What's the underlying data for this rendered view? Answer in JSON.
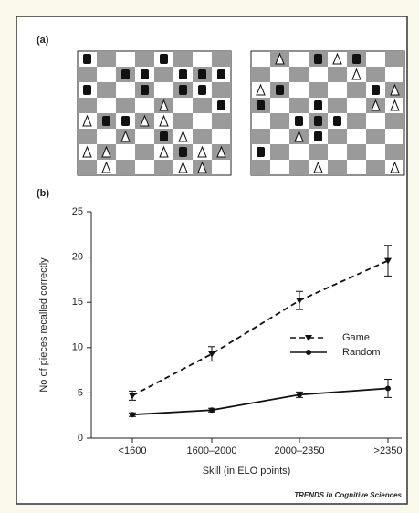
{
  "panel_a": {
    "label": "(a)"
  },
  "chart_data": {
    "type": "line",
    "label": "(b)",
    "categories": [
      "<1600",
      "1600–2000",
      "2000–2350",
      ">2350"
    ],
    "xlabel": "Skill (in ELO points)",
    "ylabel": "No of pieces recalled correctly",
    "ylim": [
      0,
      25
    ],
    "yticks": [
      0,
      5,
      10,
      15,
      20,
      25
    ],
    "series": [
      {
        "name": "Game",
        "color": "#111111",
        "dashed": true,
        "marker": "triangle",
        "values": [
          4.7,
          9.3,
          15.2,
          19.6
        ],
        "errors": [
          0.5,
          0.8,
          1.0,
          1.7
        ]
      },
      {
        "name": "Random",
        "color": "#111111",
        "dashed": false,
        "marker": "circle",
        "values": [
          2.6,
          3.1,
          4.8,
          5.5
        ],
        "errors": [
          0.2,
          0.2,
          0.3,
          1.0
        ]
      }
    ]
  },
  "footer": "TRENDS in Cognitive Sciences"
}
